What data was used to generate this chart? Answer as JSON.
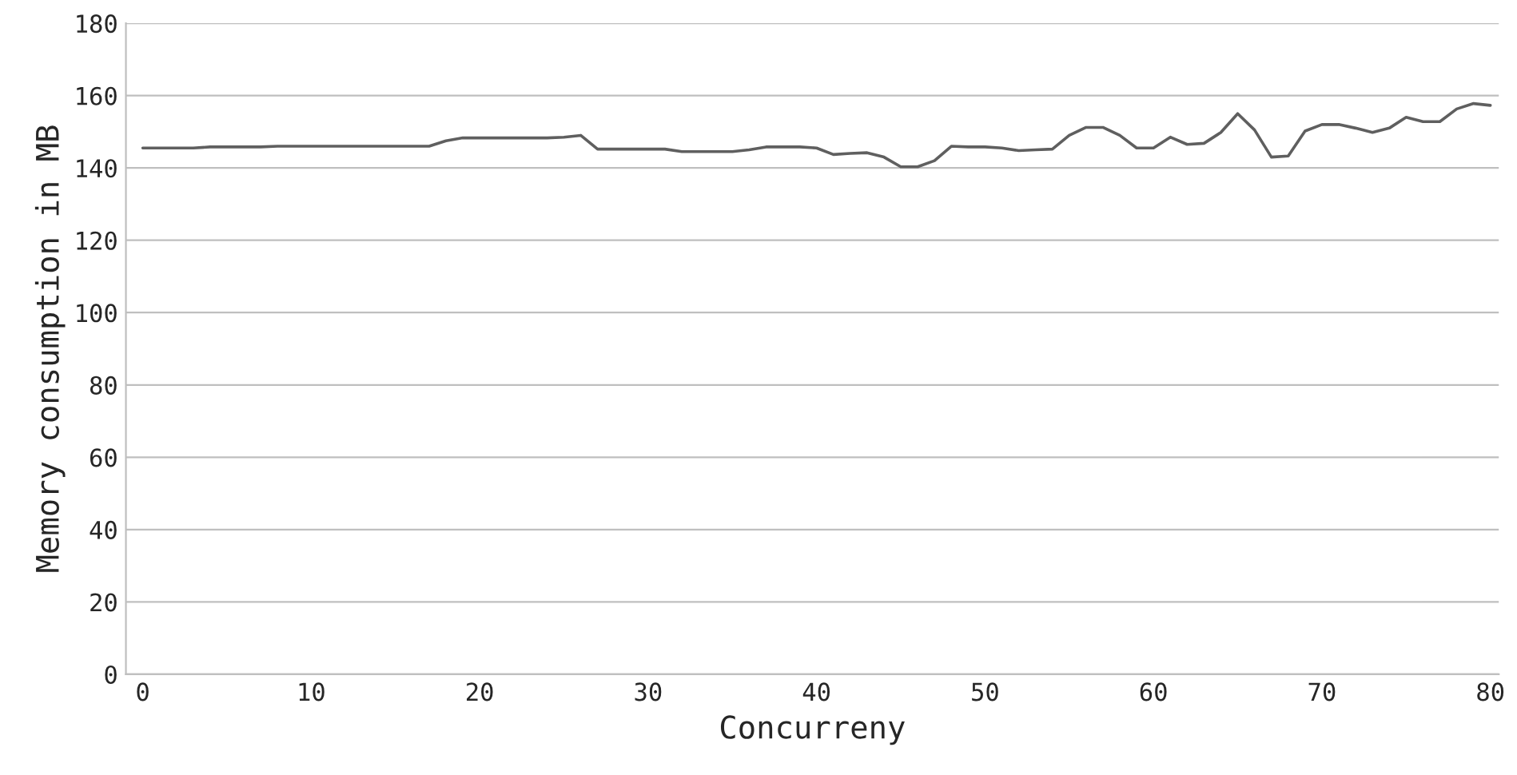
{
  "chart_data": {
    "type": "line",
    "xlabel": "Concurreny",
    "ylabel": "Memory consumption in MB",
    "x": [
      0,
      1,
      2,
      3,
      4,
      5,
      6,
      7,
      8,
      9,
      10,
      11,
      12,
      13,
      14,
      15,
      16,
      17,
      18,
      19,
      20,
      21,
      22,
      23,
      24,
      25,
      26,
      27,
      28,
      29,
      30,
      31,
      32,
      33,
      34,
      35,
      36,
      37,
      38,
      39,
      40,
      41,
      42,
      43,
      44,
      45,
      46,
      47,
      48,
      49,
      50,
      51,
      52,
      53,
      54,
      55,
      56,
      57,
      58,
      59,
      60,
      61,
      62,
      63,
      64,
      65,
      66,
      67,
      68,
      69,
      70,
      71,
      72,
      73,
      74,
      75,
      76,
      77,
      78,
      79,
      80
    ],
    "series": [
      {
        "color": "#5f5f5f",
        "values": [
          145.5,
          145.5,
          145.5,
          145.5,
          145.8,
          145.8,
          145.8,
          145.8,
          146,
          146,
          146,
          146,
          146,
          146,
          146,
          146,
          146,
          146,
          147.5,
          148.3,
          148.3,
          148.3,
          148.3,
          148.3,
          148.3,
          148.5,
          149,
          145.2,
          145.2,
          145.2,
          145.2,
          145.2,
          144.5,
          144.5,
          144.5,
          144.5,
          145,
          145.8,
          145.8,
          145.8,
          145.5,
          143.7,
          144,
          144.2,
          143,
          140.3,
          140.3,
          142,
          146,
          145.8,
          145.8,
          145.5,
          144.8,
          145,
          145.2,
          149,
          151.2,
          151.2,
          149,
          145.5,
          145.5,
          148.5,
          146.5,
          146.8,
          149.8,
          155,
          150.5,
          143,
          143.3,
          150.2,
          152,
          152,
          151,
          149.8,
          151,
          154,
          152.8,
          152.8,
          156.3,
          157.8,
          157.3
        ]
      }
    ],
    "xlim": [
      -1,
      80.5
    ],
    "xticks": [
      0,
      10,
      20,
      30,
      40,
      50,
      60,
      70,
      80
    ],
    "ylim": [
      0,
      180
    ],
    "yticks": [
      0,
      20,
      40,
      60,
      80,
      100,
      120,
      140,
      160,
      180
    ],
    "grid": "y",
    "marker": "none",
    "line_style": "solid"
  }
}
